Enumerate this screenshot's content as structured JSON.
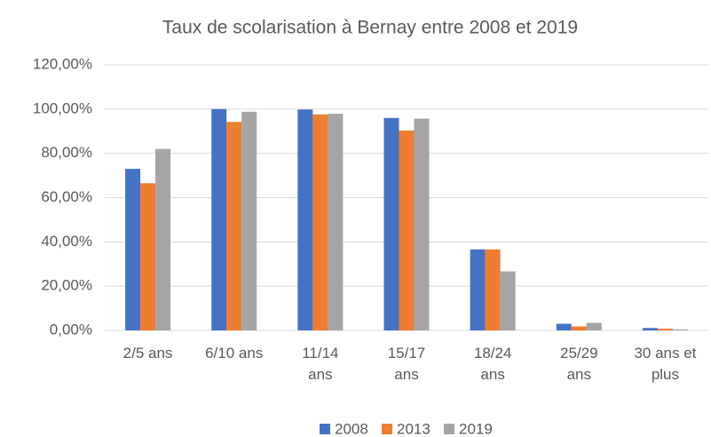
{
  "chart_data": {
    "type": "bar",
    "title": "Taux de scolarisation à Bernay entre 2008 et 2019",
    "categories": [
      "2/5 ans",
      "6/10 ans",
      "11/14 ans",
      "15/17 ans",
      "18/24 ans",
      "25/29 ans",
      "30 ans et plus"
    ],
    "series": [
      {
        "name": "2008",
        "color": "#4472c4",
        "values": [
          73,
          100,
          99.8,
          96,
          36.6,
          3.0,
          1.1
        ]
      },
      {
        "name": "2013",
        "color": "#ed7d31",
        "values": [
          66.5,
          94.2,
          97.6,
          90.3,
          36.6,
          1.8,
          0.8
        ]
      },
      {
        "name": "2019",
        "color": "#a5a5a5",
        "values": [
          82,
          98.8,
          97.9,
          95.7,
          26.7,
          3.4,
          0.5
        ]
      }
    ],
    "ylim": [
      0,
      120
    ],
    "yticks": [
      {
        "value": 0,
        "label": "0,00%"
      },
      {
        "value": 20,
        "label": "20,00%"
      },
      {
        "value": 40,
        "label": "40,00%"
      },
      {
        "value": 60,
        "label": "60,00%"
      },
      {
        "value": 80,
        "label": "80,00%"
      },
      {
        "value": 100,
        "label": "100,00%"
      },
      {
        "value": 120,
        "label": "120,00%"
      }
    ],
    "grid": true,
    "legend": "bottom"
  }
}
